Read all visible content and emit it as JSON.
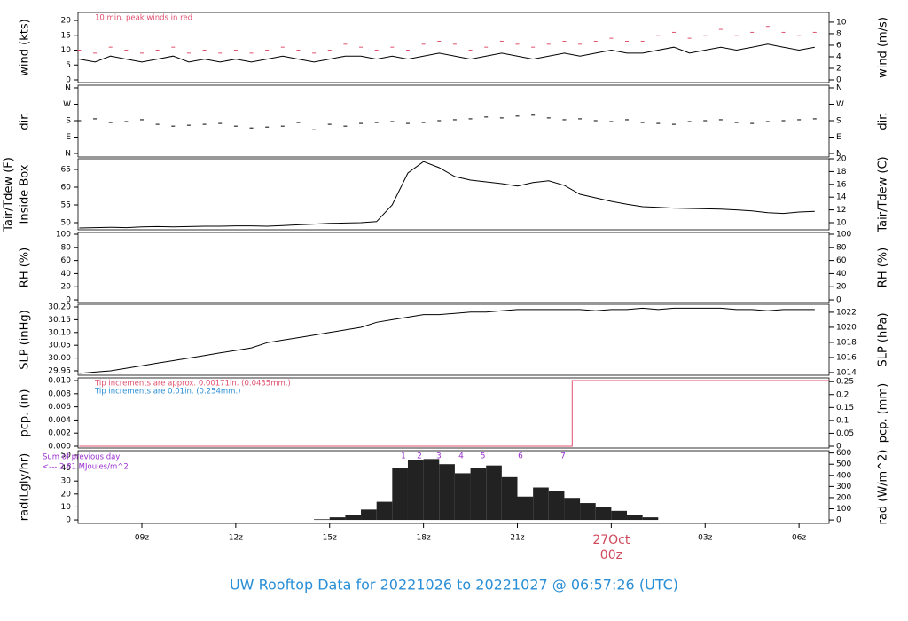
{
  "chart_data": [
    {
      "type": "line",
      "ylabel": [
        "wind (kts)"
      ],
      "y2label": "wind (m/s)",
      "xlim": [
        6.96,
        30.96
      ],
      "ylim": [
        -0.9,
        22.7
      ],
      "yticks": [
        0,
        5,
        10,
        15,
        20
      ],
      "y2lim": [
        -0.46,
        11.68
      ],
      "y2ticks": [
        0,
        2,
        4,
        6,
        8,
        10
      ],
      "x": [
        7,
        7.5,
        8,
        8.5,
        9,
        9.5,
        10,
        10.5,
        11,
        11.5,
        12,
        12.5,
        13,
        13.5,
        14,
        14.5,
        15,
        15.5,
        16,
        16.5,
        17,
        17.5,
        18,
        18.5,
        19,
        19.5,
        20,
        20.5,
        21,
        21.5,
        22,
        22.5,
        23,
        23.5,
        24,
        24.5,
        25,
        25.5,
        26,
        26.5,
        27,
        27.5,
        28,
        28.5,
        29,
        29.5,
        30,
        30.5
      ],
      "series": [
        {
          "color": "#000000",
          "values": [
            7,
            6,
            8,
            7,
            6,
            7,
            8,
            6,
            7,
            6,
            7,
            6,
            7,
            8,
            7,
            6,
            7,
            8,
            8,
            7,
            8,
            7,
            8,
            9,
            8,
            7,
            8,
            9,
            8,
            7,
            8,
            9,
            8,
            9,
            10,
            9,
            9,
            10,
            11,
            9,
            10,
            11,
            10,
            11,
            12,
            11,
            10,
            11
          ]
        },
        {
          "color": "#e0506e",
          "marker": "dash",
          "values": [
            10,
            9,
            11,
            10,
            9,
            10,
            11,
            9,
            10,
            9,
            10,
            9,
            10,
            11,
            10,
            9,
            10,
            12,
            11,
            10,
            11,
            10,
            12,
            13,
            12,
            10,
            11,
            13,
            12,
            11,
            12,
            13,
            12,
            13,
            14,
            13,
            13,
            15,
            16,
            14,
            15,
            17,
            15,
            16,
            18,
            16,
            15,
            16
          ]
        }
      ],
      "annotations": [
        {
          "text": "10 min. peak winds in red",
          "color": "#e0506e"
        }
      ]
    },
    {
      "type": "line",
      "ylabel": [
        "dir."
      ],
      "y2label": "dir.",
      "xlim": [
        6.96,
        30.96
      ],
      "ylim": [
        -19.5,
        374.5
      ],
      "yticks": [
        {
          "value": 0,
          "label": "N"
        },
        {
          "value": 90,
          "label": "E"
        },
        {
          "value": 180,
          "label": "S"
        },
        {
          "value": 270,
          "label": "W"
        },
        {
          "value": 360,
          "label": "N"
        }
      ],
      "y2lim": [
        -19.5,
        374.5
      ],
      "y2ticks": [
        {
          "value": 0,
          "label": "N"
        },
        {
          "value": 90,
          "label": "E"
        },
        {
          "value": 180,
          "label": "S"
        },
        {
          "value": 270,
          "label": "W"
        },
        {
          "value": 360,
          "label": "N"
        }
      ],
      "x": [
        7,
        7.5,
        8,
        8.5,
        9,
        9.5,
        10,
        10.5,
        11,
        11.5,
        12,
        12.5,
        13,
        13.5,
        14,
        14.5,
        15,
        15.5,
        16,
        16.5,
        17,
        17.5,
        18,
        18.5,
        19,
        19.5,
        20,
        20.5,
        21,
        21.5,
        22,
        22.5,
        23,
        23.5,
        24,
        24.5,
        25,
        25.5,
        26,
        26.5,
        27,
        27.5,
        28,
        28.5,
        29,
        29.5,
        30,
        30.5
      ],
      "series": [
        {
          "color": "#000000",
          "marker": "dash",
          "values": [
            180,
            190,
            170,
            175,
            185,
            160,
            150,
            155,
            160,
            165,
            150,
            140,
            145,
            150,
            170,
            130,
            160,
            150,
            165,
            170,
            175,
            165,
            170,
            180,
            185,
            190,
            200,
            195,
            205,
            210,
            195,
            185,
            190,
            180,
            175,
            185,
            170,
            165,
            160,
            175,
            180,
            185,
            170,
            165,
            175,
            180,
            185,
            190
          ]
        }
      ]
    },
    {
      "type": "line",
      "ylabel": [
        "Tair/Tdew (F)",
        "Inside Box"
      ],
      "y2label": "Tair/Tdew (C)",
      "xlim": [
        6.96,
        30.96
      ],
      "ylim": [
        48,
        68
      ],
      "yticks": [
        50,
        55,
        60,
        65
      ],
      "y2lim": [
        8.89,
        20
      ],
      "y2ticks": [
        10,
        12,
        14,
        16,
        18,
        20
      ],
      "x": [
        7,
        7.5,
        8,
        8.5,
        9,
        9.5,
        10,
        10.5,
        11,
        11.5,
        12,
        12.5,
        13,
        13.5,
        14,
        14.5,
        15,
        15.5,
        16,
        16.5,
        17,
        17.5,
        18,
        18.5,
        19,
        19.5,
        20,
        20.5,
        21,
        21.5,
        22,
        22.5,
        23,
        23.5,
        24,
        24.5,
        25,
        25.5,
        26,
        26.5,
        27,
        27.5,
        28,
        28.5,
        29,
        29.5,
        30,
        30.5
      ],
      "series": [
        {
          "color": "#000000",
          "values": [
            48.5,
            48.6,
            48.7,
            48.6,
            48.8,
            48.9,
            48.8,
            48.9,
            49.0,
            49.0,
            49.1,
            49.1,
            49.0,
            49.2,
            49.4,
            49.6,
            49.8,
            49.9,
            50.0,
            50.3,
            55.0,
            64.0,
            67.2,
            65.5,
            63.0,
            62.0,
            61.5,
            61.0,
            60.3,
            61.3,
            61.8,
            60.5,
            58.0,
            57.0,
            56.0,
            55.2,
            54.5,
            54.3,
            54.1,
            54.0,
            53.9,
            53.8,
            53.6,
            53.3,
            52.8,
            52.6,
            53.0,
            53.2
          ]
        }
      ]
    },
    {
      "type": "line",
      "ylabel": [
        "RH (%)"
      ],
      "y2label": "RH (%)",
      "xlim": [
        6.96,
        30.96
      ],
      "ylim": [
        -4,
        102.7
      ],
      "yticks": [
        0,
        20,
        40,
        60,
        80,
        100
      ],
      "y2lim": [
        -4,
        102.7
      ],
      "y2ticks": [
        0,
        20,
        40,
        60,
        80,
        100
      ],
      "series": []
    },
    {
      "type": "line",
      "ylabel": [
        "SLP (inHg)"
      ],
      "y2label": "SLP (hPa)",
      "xlim": [
        6.96,
        30.96
      ],
      "ylim": [
        29.9326,
        30.2104
      ],
      "yticks": [
        {
          "value": 29.95,
          "label": "29.95"
        },
        {
          "value": 30.0,
          "label": "30.00"
        },
        {
          "value": 30.05,
          "label": "30.05"
        },
        {
          "value": 30.1,
          "label": "30.10"
        },
        {
          "value": 30.15,
          "label": "30.15"
        },
        {
          "value": 30.2,
          "label": "30.20"
        }
      ],
      "y2lim": [
        1013.64,
        1023.05
      ],
      "y2ticks": [
        1014,
        1016,
        1018,
        1020,
        1022
      ],
      "x": [
        7,
        7.5,
        8,
        8.5,
        9,
        9.5,
        10,
        10.5,
        11,
        11.5,
        12,
        12.5,
        13,
        13.5,
        14,
        14.5,
        15,
        15.5,
        16,
        16.5,
        17,
        17.5,
        18,
        18.5,
        19,
        19.5,
        20,
        20.5,
        21,
        21.5,
        22,
        22.5,
        23,
        23.5,
        24,
        24.5,
        25,
        25.5,
        26,
        26.5,
        27,
        27.5,
        28,
        28.5,
        29,
        29.5,
        30,
        30.5
      ],
      "series": [
        {
          "color": "#000000",
          "values": [
            29.94,
            29.945,
            29.95,
            29.96,
            29.97,
            29.98,
            29.99,
            30.0,
            30.01,
            30.02,
            30.03,
            30.04,
            30.06,
            30.07,
            30.08,
            30.09,
            30.1,
            30.11,
            30.12,
            30.14,
            30.15,
            30.16,
            30.17,
            30.17,
            30.175,
            30.18,
            30.18,
            30.185,
            30.19,
            30.19,
            30.19,
            30.19,
            30.19,
            30.185,
            30.19,
            30.19,
            30.195,
            30.19,
            30.195,
            30.195,
            30.195,
            30.195,
            30.19,
            30.19,
            30.185,
            30.19,
            30.19,
            30.19
          ]
        }
      ]
    },
    {
      "type": "line",
      "ylabel": [
        "pcp. (in)"
      ],
      "y2label": "pcp. (mm)",
      "xlim": [
        6.96,
        30.96
      ],
      "ylim": [
        -0.00027,
        0.01041
      ],
      "yticks": [
        {
          "value": 0,
          "label": "0.000"
        },
        {
          "value": 0.002,
          "label": "0.002"
        },
        {
          "value": 0.004,
          "label": "0.004"
        },
        {
          "value": 0.006,
          "label": "0.006"
        },
        {
          "value": 0.008,
          "label": "0.008"
        },
        {
          "value": 0.01,
          "label": "0.010"
        }
      ],
      "y2lim": [
        -0.0069,
        0.2644
      ],
      "y2ticks": [
        0,
        0.05,
        0.1,
        0.15,
        0.2,
        0.25
      ],
      "x": [
        7,
        22.75,
        22.75,
        30.96
      ],
      "series": [
        {
          "color": "#e0506e",
          "values": [
            0,
            0,
            0.01,
            0.01
          ]
        }
      ],
      "annotations": [
        {
          "text": "Tip increments are approx. 0.00171in. (0.0435mm.)",
          "color": "#e0506e"
        },
        {
          "text": "Tip increments are 0.01in. (0.254mm.)",
          "color": "#2a8fd6"
        }
      ]
    },
    {
      "type": "bar",
      "ylabel": [
        "rad(Lgly/hr)"
      ],
      "y2label": "rad (W/m^2)",
      "xlim": [
        6.96,
        30.96
      ],
      "ylim": [
        -2.7,
        53.4
      ],
      "yticks": [
        0,
        10,
        20,
        30,
        40,
        50
      ],
      "y2lim": [
        -31,
        621
      ],
      "y2ticks": [
        0,
        100,
        200,
        300,
        400,
        500,
        600
      ],
      "xticks": [
        {
          "value": 9,
          "label": "09z"
        },
        {
          "value": 12,
          "label": "12z"
        },
        {
          "value": 15,
          "label": "15z"
        },
        {
          "value": 18,
          "label": "18z"
        },
        {
          "value": 21,
          "label": "21z"
        },
        {
          "value": 24,
          "label": "00z"
        },
        {
          "value": 27,
          "label": "03z"
        },
        {
          "value": 30,
          "label": "06z"
        }
      ],
      "date_label": {
        "value": 24,
        "label": "27Oct"
      },
      "x": [
        7,
        7.5,
        8,
        8.5,
        9,
        9.5,
        10,
        10.5,
        11,
        11.5,
        12,
        12.5,
        13,
        13.5,
        14,
        14.5,
        15,
        15.5,
        16,
        16.5,
        17,
        17.5,
        18,
        18.5,
        19,
        19.5,
        20,
        20.5,
        21,
        21.5,
        22,
        22.5,
        23,
        23.5,
        24,
        24.5,
        25,
        25.5,
        26,
        26.5,
        27,
        27.5,
        28,
        28.5,
        29,
        29.5,
        30,
        30.5
      ],
      "series": [
        {
          "color": "#222222",
          "values": [
            0,
            0,
            0,
            0,
            0,
            0,
            0,
            0,
            0,
            0,
            0,
            0,
            0,
            0,
            0,
            0.5,
            2,
            4,
            8,
            14,
            40,
            46,
            47,
            43,
            36,
            40,
            42,
            33,
            18,
            25,
            22,
            17,
            13,
            10,
            7,
            4,
            2,
            0,
            0,
            0,
            0,
            0,
            0,
            0,
            0,
            0,
            0,
            0
          ]
        }
      ],
      "annotations": [
        {
          "text": "Sum of previous day",
          "color": "#9b30d0"
        },
        {
          "text": "<--- 2.81 MJoules/m^2",
          "color": "#9b30d0"
        }
      ],
      "markers": [
        {
          "label": "1",
          "x": 17.36
        },
        {
          "label": "2",
          "x": 17.87
        },
        {
          "label": "3",
          "x": 18.49
        },
        {
          "label": "4",
          "x": 19.2
        },
        {
          "label": "5",
          "x": 19.9
        },
        {
          "label": "6",
          "x": 21.1
        },
        {
          "label": "7",
          "x": 22.46
        }
      ],
      "marker_color": "#9b30d0"
    }
  ],
  "title": "UW Rooftop Data for 20221026  to  20221027 @ 06:57:26  (UTC)"
}
